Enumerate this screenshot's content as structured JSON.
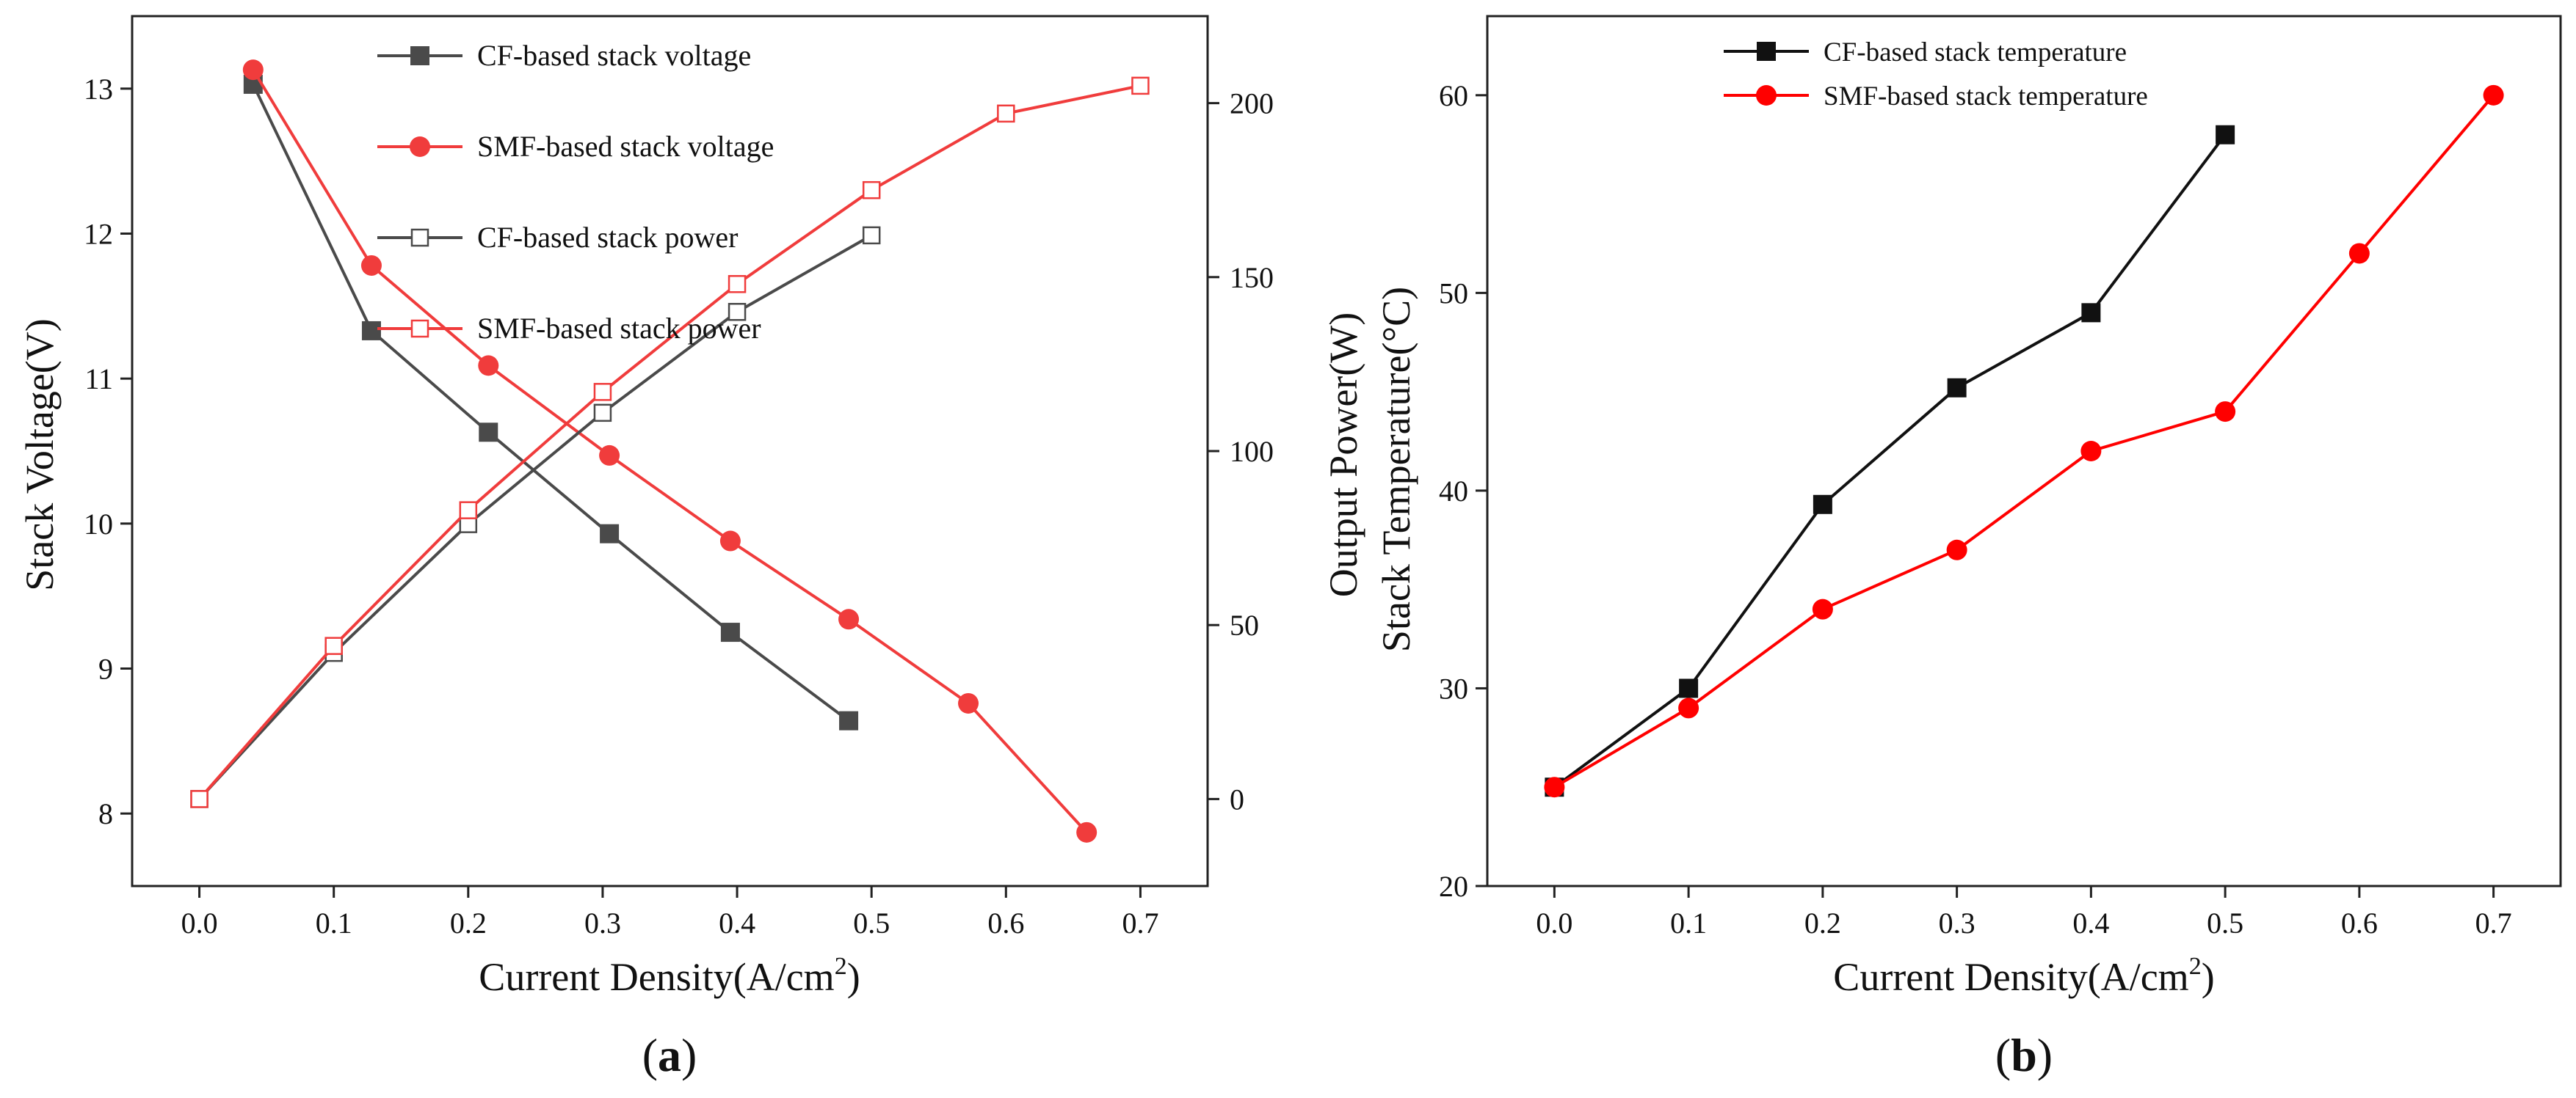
{
  "chart_data": [
    {
      "type": "line",
      "panel_label": "a",
      "xlabel": "Current Density(A/cm",
      "xlabel_sup": "2",
      "xlabel_end": ")",
      "ylabel": "Stack Voltage(V)",
      "y2label": "Output Power(W)",
      "xlim": [
        -0.05,
        0.75
      ],
      "ylim": [
        7.5,
        13.5
      ],
      "y2lim": [
        -25,
        225
      ],
      "xticks": [
        "0.0",
        "0.1",
        "0.2",
        "0.3",
        "0.4",
        "0.5",
        "0.6",
        "0.7"
      ],
      "yticks": [
        "8",
        "9",
        "10",
        "11",
        "12",
        "13"
      ],
      "y2ticks": [
        "0",
        "50",
        "100",
        "150",
        "200"
      ],
      "legend_position": "top-center",
      "series": [
        {
          "name": "CF-based stack voltage",
          "axis": "left",
          "color": "#4a4a4a",
          "marker": "square-filled",
          "x": [
            0.04,
            0.128,
            0.215,
            0.305,
            0.395,
            0.483
          ],
          "y": [
            13.03,
            11.33,
            10.63,
            9.93,
            9.25,
            8.64
          ]
        },
        {
          "name": "SMF-based stack voltage",
          "axis": "left",
          "color": "#f03c3c",
          "marker": "circle-filled",
          "x": [
            0.04,
            0.128,
            0.215,
            0.305,
            0.395,
            0.483,
            0.572,
            0.66
          ],
          "y": [
            13.13,
            11.78,
            11.09,
            10.47,
            9.88,
            9.34,
            8.76,
            7.87
          ]
        },
        {
          "name": "CF-based stack power",
          "axis": "right",
          "color": "#4a4a4a",
          "marker": "square-open",
          "x": [
            0.0,
            0.1,
            0.2,
            0.3,
            0.4,
            0.5
          ],
          "y": [
            0,
            42,
            79,
            111,
            140,
            162
          ]
        },
        {
          "name": "SMF-based stack power",
          "axis": "right",
          "color": "#f03c3c",
          "marker": "square-open",
          "x": [
            0.0,
            0.1,
            0.2,
            0.3,
            0.4,
            0.5,
            0.6,
            0.7
          ],
          "y": [
            0,
            44,
            83,
            117,
            148,
            175,
            197,
            205
          ]
        }
      ]
    },
    {
      "type": "line",
      "panel_label": "b",
      "xlabel": "Current Density(A/cm",
      "xlabel_sup": "2",
      "xlabel_end": ")",
      "ylabel": "Stack Temperature(°C)",
      "xlim": [
        -0.05,
        0.75
      ],
      "ylim": [
        20,
        64
      ],
      "xticks": [
        "0.0",
        "0.1",
        "0.2",
        "0.3",
        "0.4",
        "0.5",
        "0.6",
        "0.7"
      ],
      "yticks": [
        "20",
        "30",
        "40",
        "50",
        "60"
      ],
      "legend_position": "top-left",
      "series": [
        {
          "name": "CF-based stack temperature",
          "color": "#111111",
          "marker": "square-filled",
          "x": [
            0.0,
            0.1,
            0.2,
            0.3,
            0.4,
            0.5
          ],
          "y": [
            25,
            30,
            39.3,
            45.2,
            49,
            58
          ]
        },
        {
          "name": "SMF-based stack temperature",
          "color": "#ff0000",
          "marker": "circle-filled",
          "x": [
            0.0,
            0.1,
            0.2,
            0.3,
            0.4,
            0.5,
            0.6,
            0.7
          ],
          "y": [
            25,
            29,
            34,
            37,
            42,
            44,
            52,
            60
          ]
        }
      ]
    }
  ]
}
